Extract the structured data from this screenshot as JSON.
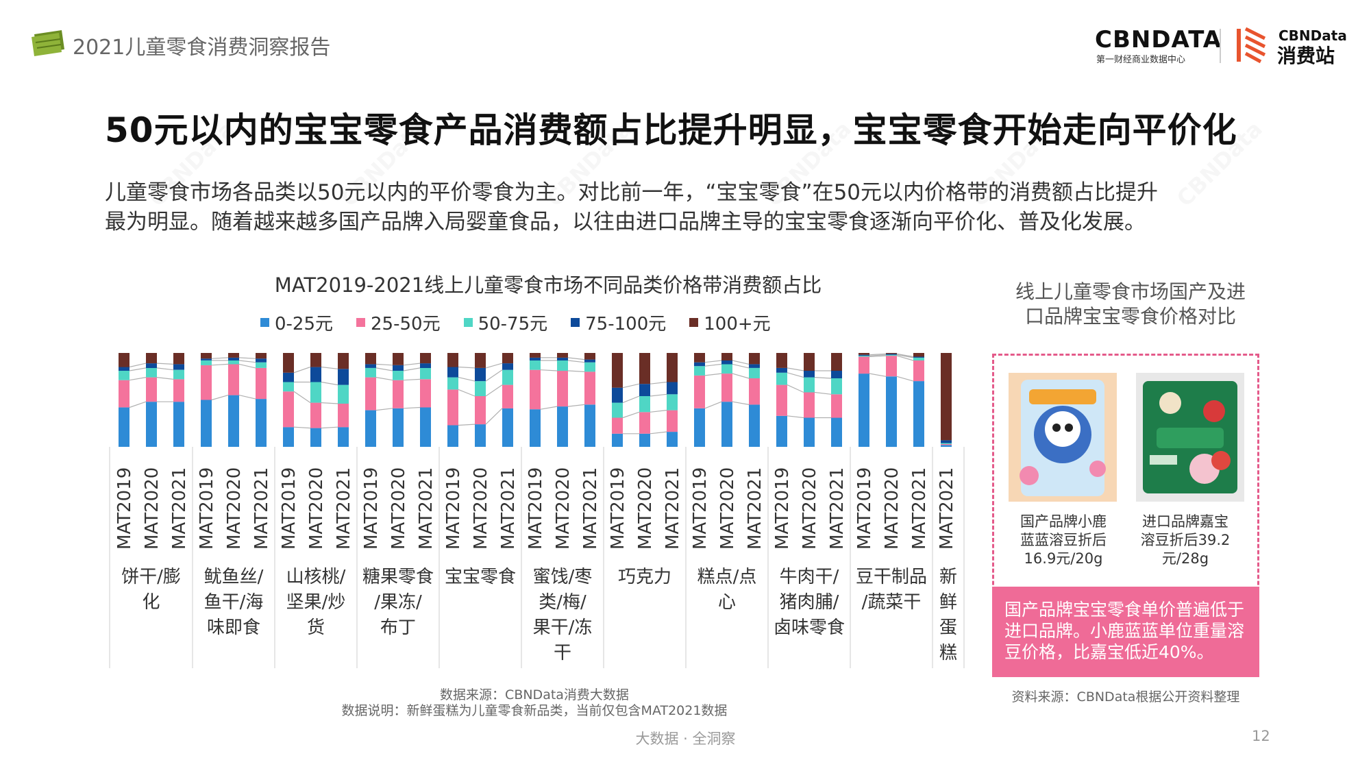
{
  "header": {
    "report_title": "2021儿童零食消费洞察报告",
    "logo_text": "CBNDATA",
    "logo_subtext": "第一财经商业数据中心",
    "logo2_top": "CBNData",
    "logo2_bottom": "消费站"
  },
  "main_title": "50元以内的宝宝零食产品消费额占比提升明显，宝宝零食开始走向平价化",
  "subtitle_line1": "儿童零食市场各品类以50元以内的平价零食为主。对比前一年，“宝宝零食”在50元以内价格带的消费额占比提升",
  "subtitle_line2": "最为明显。随着越来越多国产品牌入局婴童食品，以往由进口品牌主导的宝宝零食逐渐向平价化、普及化发展。",
  "chart_data": {
    "type": "bar",
    "stacked": true,
    "normalized": true,
    "title": "MAT2019-2021线上儿童零食市场不同品类价格带消费额占比",
    "legend": "top",
    "series_names": [
      "0-25元",
      "25-50元",
      "50-75元",
      "75-100元",
      "100+元"
    ],
    "colors": [
      "#2e8bd6",
      "#f4739c",
      "#4fd6c5",
      "#0d4a9a",
      "#6a2e26"
    ],
    "groups": [
      {
        "label": "饼干/膨化",
        "bars": [
          {
            "x": "MAT2019",
            "values": [
              42,
              29,
              10,
              4,
              15
            ]
          },
          {
            "x": "MAT2020",
            "values": [
              48,
              26,
              10,
              5,
              11
            ]
          },
          {
            "x": "MAT2021",
            "values": [
              48,
              24,
              10,
              6,
              12
            ]
          }
        ]
      },
      {
        "label": "鱿鱼丝/鱼干/海味即食",
        "bars": [
          {
            "x": "MAT2019",
            "values": [
              50,
              37,
              5,
              2,
              6
            ]
          },
          {
            "x": "MAT2020",
            "values": [
              55,
              33,
              4,
              3,
              5
            ]
          },
          {
            "x": "MAT2021",
            "values": [
              51,
              33,
              6,
              4,
              6
            ]
          }
        ]
      },
      {
        "label": "山核桃/坚果/炒货",
        "bars": [
          {
            "x": "MAT2019",
            "values": [
              21,
              38,
              10,
              10,
              21
            ]
          },
          {
            "x": "MAT2020",
            "values": [
              20,
              27,
              22,
              16,
              15
            ]
          },
          {
            "x": "MAT2021",
            "values": [
              21,
              25,
              20,
              17,
              17
            ]
          }
        ]
      },
      {
        "label": "糖果零食/果冻/布丁",
        "bars": [
          {
            "x": "MAT2019",
            "values": [
              39,
              35,
              10,
              4,
              12
            ]
          },
          {
            "x": "MAT2020",
            "values": [
              41,
              30,
              10,
              6,
              13
            ]
          },
          {
            "x": "MAT2021",
            "values": [
              42,
              30,
              12,
              5,
              11
            ]
          }
        ]
      },
      {
        "label": "宝宝零食",
        "bars": [
          {
            "x": "MAT2019",
            "values": [
              23,
              38,
              13,
              11,
              15
            ]
          },
          {
            "x": "MAT2020",
            "values": [
              24,
              30,
              16,
              14,
              16
            ]
          },
          {
            "x": "MAT2021",
            "values": [
              41,
              25,
              16,
              7,
              11
            ]
          }
        ]
      },
      {
        "label": "蜜饯/枣类/梅/果干/冻干",
        "bars": [
          {
            "x": "MAT2019",
            "values": [
              40,
              42,
              10,
              3,
              5
            ]
          },
          {
            "x": "MAT2020",
            "values": [
              43,
              38,
              11,
              3,
              5
            ]
          },
          {
            "x": "MAT2021",
            "values": [
              45,
              35,
              10,
              3,
              7
            ]
          }
        ]
      },
      {
        "label": "巧克力",
        "bars": [
          {
            "x": "MAT2019",
            "values": [
              14,
              17,
              16,
              16,
              37
            ]
          },
          {
            "x": "MAT2020",
            "values": [
              14,
              23,
              17,
              13,
              33
            ]
          },
          {
            "x": "MAT2021",
            "values": [
              16,
              23,
              17,
              13,
              31
            ]
          }
        ]
      },
      {
        "label": "糕点/点心",
        "bars": [
          {
            "x": "MAT2019",
            "values": [
              41,
              35,
              10,
              4,
              10
            ]
          },
          {
            "x": "MAT2020",
            "values": [
              48,
              30,
              10,
              4,
              8
            ]
          },
          {
            "x": "MAT2021",
            "values": [
              45,
              28,
              11,
              4,
              12
            ]
          }
        ]
      },
      {
        "label": "牛肉干/猪肉脯/卤味零食",
        "bars": [
          {
            "x": "MAT2019",
            "values": [
              33,
              33,
              13,
              5,
              16
            ]
          },
          {
            "x": "MAT2020",
            "values": [
              31,
              27,
              16,
              7,
              19
            ]
          },
          {
            "x": "MAT2021",
            "values": [
              31,
              25,
              17,
              8,
              19
            ]
          }
        ]
      },
      {
        "label": "豆干制品/蔬菜干",
        "bars": [
          {
            "x": "MAT2019",
            "values": [
              78,
              18,
              1,
              1,
              2
            ]
          },
          {
            "x": "MAT2020",
            "values": [
              75,
              22,
              1,
              1,
              1
            ]
          },
          {
            "x": "MAT2021",
            "values": [
              70,
              22,
              3,
              1,
              4
            ]
          }
        ]
      },
      {
        "label": "新鲜蛋糕",
        "bars": [
          {
            "x": "MAT2021",
            "values": [
              2,
              1,
              1,
              3,
              93
            ]
          }
        ]
      }
    ]
  },
  "sidebar": {
    "title_line1": "线上儿童零食市场国产及进",
    "title_line2": "口品牌宝宝零食价格对比",
    "product1": {
      "line1": "国产品牌小鹿",
      "line2": "蓝蓝溶豆折后",
      "line3": "16.9元/20g"
    },
    "product2": {
      "line1": "进口品牌嘉宝",
      "line2": "溶豆折后39.2",
      "line3": "元/28g"
    },
    "note_line1": "国产品牌宝宝零食单价普遍低于",
    "note_line2": "进口品牌。小鹿蓝蓝单位重量溶",
    "note_line3": "豆价格，比嘉宝低近40%。",
    "source": "资料来源：CBNData根据公开资料整理"
  },
  "footnotes": {
    "source": "数据来源：CBNData消费大数据",
    "note": "数据说明：新鲜蛋糕为儿童零食新品类，当前仅包含MAT2021数据"
  },
  "footer": "大数据 · 全洞察",
  "page_number": "12"
}
